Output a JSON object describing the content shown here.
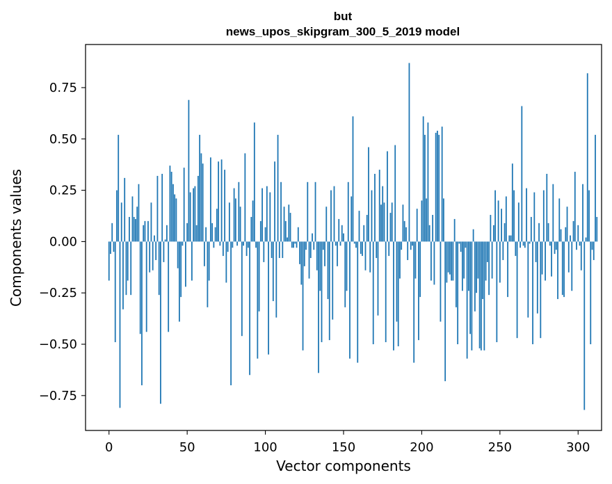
{
  "chart_data": {
    "type": "bar",
    "title_line1": "but",
    "title_line2": "news_upos_skipgram_300_5_2019 model",
    "xlabel": "Vector components",
    "ylabel": "Components values",
    "xlim": [
      -15,
      315
    ],
    "ylim": [
      -0.92,
      0.96
    ],
    "xticks": [
      0,
      50,
      100,
      150,
      200,
      250,
      300
    ],
    "xtick_labels": [
      "0",
      "50",
      "100",
      "150",
      "200",
      "250",
      "300"
    ],
    "yticks": [
      -0.75,
      -0.5,
      -0.25,
      0.0,
      0.25,
      0.5,
      0.75
    ],
    "ytick_labels": [
      "−0.75",
      "−0.50",
      "−0.25",
      "0.00",
      "0.25",
      "0.50",
      "0.75"
    ],
    "bar_color": "#1f77b4",
    "values": [
      -0.19,
      -0.06,
      0.09,
      -0.05,
      -0.49,
      0.25,
      0.52,
      -0.81,
      0.19,
      -0.33,
      0.31,
      -0.26,
      -0.19,
      0.12,
      -0.26,
      0.22,
      0.12,
      0.11,
      0.17,
      0.28,
      -0.45,
      -0.7,
      0.08,
      0.1,
      -0.44,
      0.1,
      -0.15,
      0.19,
      -0.14,
      0.03,
      -0.09,
      0.32,
      -0.26,
      -0.79,
      0.33,
      -0.1,
      0.01,
      0.08,
      -0.44,
      0.37,
      0.34,
      0.28,
      0.23,
      0.21,
      -0.13,
      -0.39,
      -0.27,
      -0.02,
      0.36,
      -0.22,
      0.09,
      0.69,
      0.24,
      -0.19,
      0.26,
      0.27,
      0.08,
      0.32,
      0.52,
      0.43,
      0.38,
      -0.12,
      0.07,
      -0.32,
      -0.19,
      0.41,
      0.09,
      -0.03,
      0.07,
      0.16,
      0.39,
      -0.02,
      0.4,
      -0.07,
      0.35,
      -0.2,
      -0.05,
      0.19,
      -0.7,
      -0.03,
      0.26,
      0.21,
      -0.02,
      0.29,
      0.17,
      -0.46,
      -0.02,
      0.43,
      -0.07,
      -0.03,
      -0.65,
      0.12,
      0.2,
      0.58,
      -0.03,
      -0.57,
      -0.34,
      0.1,
      0.26,
      -0.1,
      0.07,
      0.27,
      -0.55,
      0.24,
      -0.08,
      -0.29,
      0.39,
      -0.37,
      0.52,
      -0.08,
      0.29,
      -0.08,
      0.17,
      0.1,
      0.02,
      0.18,
      0.14,
      -0.03,
      -0.03,
      -0.01,
      -0.03,
      0.07,
      -0.11,
      -0.21,
      -0.53,
      -0.12,
      -0.04,
      0.29,
      -0.18,
      -0.08,
      0.04,
      -0.04,
      0.29,
      -0.14,
      -0.64,
      -0.24,
      -0.49,
      -0.04,
      -0.12,
      0.17,
      -0.28,
      -0.48,
      0.25,
      -0.38,
      0.27,
      -0.02,
      -0.12,
      0.11,
      -0.02,
      0.08,
      0.04,
      -0.32,
      -0.24,
      0.29,
      -0.57,
      0.22,
      0.61,
      -0.01,
      -0.03,
      -0.59,
      0.15,
      -0.06,
      -0.07,
      0.08,
      -0.14,
      0.13,
      0.46,
      -0.15,
      0.25,
      -0.5,
      0.33,
      -0.08,
      -0.36,
      0.35,
      0.18,
      0.27,
      0.19,
      -0.49,
      0.44,
      -0.07,
      0.14,
      0.19,
      -0.53,
      0.47,
      -0.39,
      -0.51,
      -0.18,
      -0.04,
      0.18,
      0.1,
      0.07,
      -0.09,
      0.87,
      -0.04,
      -0.02,
      -0.59,
      -0.18,
      0.16,
      -0.48,
      -0.27,
      0.2,
      0.61,
      0.52,
      0.21,
      0.58,
      0.08,
      -0.19,
      0.13,
      -0.21,
      0.53,
      0.54,
      0.52,
      -0.39,
      0.56,
      0.21,
      -0.68,
      -0.2,
      -0.15,
      -0.16,
      -0.19,
      -0.19,
      0.11,
      -0.32,
      -0.5,
      -0.01,
      -0.05,
      -0.24,
      -0.18,
      -0.03,
      -0.57,
      -0.24,
      -0.45,
      -0.53,
      0.06,
      -0.34,
      -0.25,
      -0.18,
      -0.52,
      -0.53,
      -0.28,
      -0.53,
      -0.19,
      -0.1,
      -0.26,
      0.13,
      -0.18,
      0.08,
      0.25,
      -0.49,
      0.2,
      -0.2,
      0.16,
      -0.09,
      0.09,
      0.22,
      -0.27,
      0.03,
      0.03,
      0.38,
      0.25,
      -0.07,
      -0.47,
      0.19,
      -0.03,
      0.66,
      -0.02,
      -0.03,
      0.26,
      -0.37,
      -0.01,
      0.12,
      -0.5,
      0.24,
      -0.1,
      -0.35,
      0.09,
      -0.47,
      -0.16,
      0.25,
      -0.19,
      0.33,
      0.09,
      -0.02,
      -0.17,
      0.28,
      -0.06,
      -0.04,
      -0.28,
      0.21,
      0.06,
      -0.26,
      -0.27,
      0.07,
      0.17,
      -0.15,
      0.03,
      -0.24,
      0.1,
      0.34,
      -0.04,
      0.08,
      -0.02,
      -0.14,
      0.28,
      -0.82,
      0.02,
      0.82,
      0.25,
      -0.5,
      -0.04,
      -0.09,
      0.52,
      0.12
    ]
  }
}
